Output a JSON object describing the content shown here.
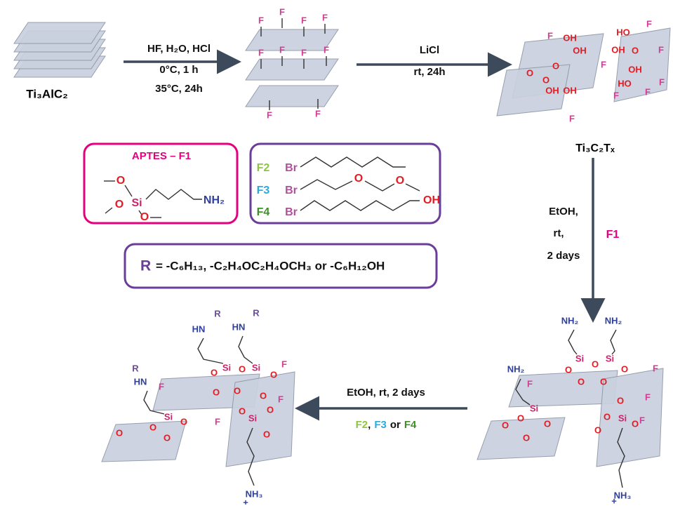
{
  "scheme": {
    "start": "Ti₃AlC₂",
    "step1": [
      "HF, H₂O, HCl",
      "0°C, 1 h",
      "35°C, 24h"
    ],
    "step2": [
      "LiCl",
      "rt, 24h"
    ],
    "mxene": "Ti₃C₂Tₓ",
    "step3": {
      "conditions": [
        "EtOH,",
        "rt,",
        "2 days"
      ],
      "reagent": "F1"
    },
    "step4": {
      "conditions": "EtOH, rt, 2 days",
      "reagents": [
        "F2",
        "F3",
        "F4"
      ],
      "separators": [
        ",",
        "or"
      ]
    }
  },
  "aptes": {
    "title": "APTES – F1",
    "atoms": [
      "O",
      "Si",
      "O",
      "O",
      "NH₂"
    ]
  },
  "halides": {
    "rows": [
      {
        "label": "F2",
        "atoms": [
          "Br"
        ]
      },
      {
        "label": "F3",
        "atoms": [
          "Br",
          "O",
          "O"
        ]
      },
      {
        "label": "F4",
        "atoms": [
          "Br",
          "OH"
        ]
      }
    ]
  },
  "r_group": {
    "symbol": "R",
    "definition": "= -C₆H₁₃, -C₂H₄OC₂H₄OCH₃ or -C₆H₁₂OH"
  },
  "structures": [
    {
      "atoms": [
        "F",
        "F",
        "F",
        "F",
        "F",
        "F",
        "F",
        "F",
        "F",
        "F"
      ]
    },
    {
      "atoms": [
        "F",
        "OH",
        "OH",
        "O",
        "HO",
        "F",
        "OH",
        "O",
        "F",
        "O",
        "O",
        "OH",
        "OH",
        "F",
        "OH",
        "HO",
        "F",
        "F",
        "F",
        "F"
      ]
    },
    {
      "atoms": [
        "NH₂",
        "NH₂",
        "NH₂",
        "Si",
        "Si",
        "O",
        "O",
        "O",
        "O",
        "O",
        "F",
        "F",
        "Si",
        "O",
        "O",
        "O",
        "O",
        "O",
        "F",
        "O",
        "O",
        "Si",
        "O",
        "F",
        "NH₃",
        "+"
      ]
    },
    {
      "atoms": [
        "HN",
        "R",
        "HN",
        "R",
        "HN",
        "R",
        "Si",
        "Si",
        "O",
        "O",
        "O",
        "O",
        "O",
        "F",
        "F",
        "Si",
        "O",
        "O",
        "O",
        "O",
        "F",
        "O",
        "O",
        "Si",
        "O",
        "O",
        "F",
        "NH₃",
        "+"
      ]
    }
  ]
}
